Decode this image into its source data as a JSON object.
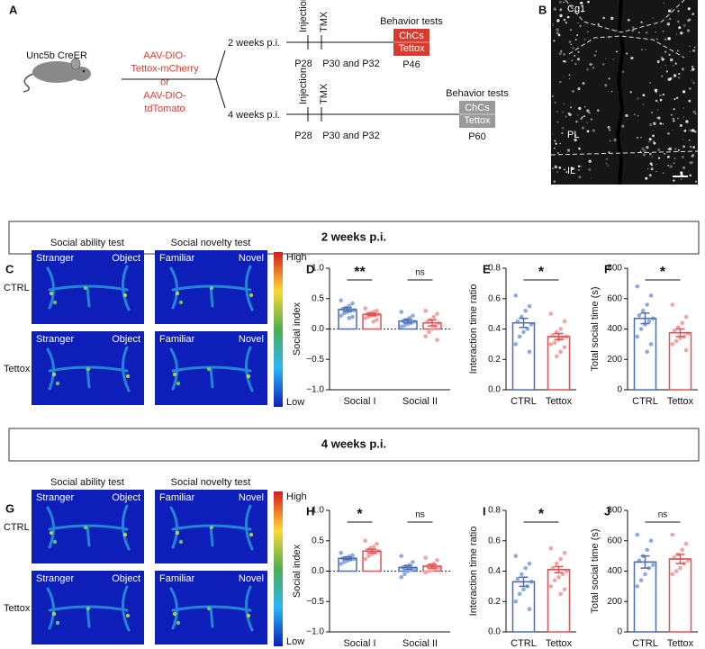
{
  "panel_a": {
    "label": "A",
    "mouse": "Unc5b CreER",
    "virus": [
      "AAV-DIO-",
      "Tettox-mCherry",
      "or",
      "AAV-DIO-",
      "tdTomato"
    ],
    "timelines": [
      {
        "duration": "2 weeks p.i.",
        "injection": "Injection",
        "tmx": "TMX",
        "p_inj": "P28",
        "p_tmx": "P30 and P32",
        "behavior": "Behavior tests",
        "box": [
          "ChCs",
          "Tettox"
        ],
        "p_test": "P46",
        "color": "#d93a2b"
      },
      {
        "duration": "4 weeks p.i.",
        "injection": "Injection",
        "tmx": "TMX",
        "p_inj": "P28",
        "p_tmx": "P30 and P32",
        "behavior": "Behavior tests",
        "box": [
          "ChCs",
          "Tettox"
        ],
        "p_test": "P60",
        "color": "#9a9a9a"
      }
    ]
  },
  "panel_b": {
    "label": "B",
    "regions": [
      "Cg1",
      "PL",
      "IL"
    ]
  },
  "banners": [
    "2 weeks p.i.",
    "4 weeks p.i."
  ],
  "heatmap_panels": [
    {
      "label": "C",
      "tests": [
        "Social ability test",
        "Social novelty test"
      ],
      "conditions": [
        "CTRL",
        "Tettox"
      ],
      "chambers": [
        [
          "Stranger",
          "Object"
        ],
        [
          "Familiar",
          "Novel"
        ]
      ],
      "scale": [
        "High",
        "Low"
      ]
    },
    {
      "label": "G",
      "tests": [
        "Social ability test",
        "Social novelty test"
      ],
      "conditions": [
        "CTRL",
        "Tettox"
      ],
      "chambers": [
        [
          "Stranger",
          "Object"
        ],
        [
          "Familiar",
          "Novel"
        ]
      ],
      "scale": [
        "High",
        "Low"
      ]
    }
  ],
  "chart_data": [
    {
      "type": "bar",
      "panel": "D",
      "ylabel": "Social index",
      "categories": [
        "Social I",
        "Social II"
      ],
      "series": [
        {
          "color": "#4a6fb5",
          "point_color": "#8fabdc",
          "values": [
            0.32,
            0.13
          ],
          "errors": [
            0.03,
            0.03
          ],
          "points": [
            [
              0.47,
              0.42,
              0.38,
              0.35,
              0.33,
              0.31,
              0.3,
              0.28,
              0.26,
              0.22,
              0.2,
              0.18
            ],
            [
              0.28,
              0.22,
              0.18,
              0.15,
              0.13,
              0.12,
              0.1,
              0.08,
              0.06,
              0.04
            ]
          ]
        },
        {
          "color": "#e05252",
          "point_color": "#f3a3a3",
          "values": [
            0.24,
            0.1
          ],
          "errors": [
            0.02,
            0.05
          ],
          "points": [
            [
              0.34,
              0.3,
              0.28,
              0.26,
              0.25,
              0.24,
              0.23,
              0.22,
              0.2,
              0.18,
              0.15,
              0.12
            ],
            [
              0.3,
              0.25,
              0.2,
              0.15,
              0.12,
              0.1,
              0.05,
              0.0,
              -0.05,
              -0.12,
              -0.18
            ]
          ]
        }
      ],
      "significance": [
        "**",
        "ns"
      ],
      "refline": 0,
      "ylim": [
        -1,
        1
      ],
      "yticks": [
        {
          "value": -1,
          "label": "−1.0"
        },
        {
          "value": -0.5,
          "label": "−0.5"
        },
        {
          "value": 0,
          "label": "0.0"
        },
        0.5,
        {
          "value": 1,
          "label": "1.0"
        }
      ]
    },
    {
      "type": "bar",
      "panel": "E",
      "ylabel": "Interaction time ratio",
      "categories": [
        "CTRL",
        "Tettox"
      ],
      "colors": [
        "#4a6fb5",
        "#e05252"
      ],
      "point_colors": [
        "#8fabdc",
        "#f3a3a3"
      ],
      "values": [
        0.44,
        0.35
      ],
      "errors": [
        0.03,
        0.02
      ],
      "points": [
        [
          0.62,
          0.55,
          0.52,
          0.48,
          0.45,
          0.43,
          0.4,
          0.38,
          0.35,
          0.3,
          0.25
        ],
        [
          0.5,
          0.45,
          0.4,
          0.38,
          0.36,
          0.35,
          0.34,
          0.33,
          0.31,
          0.3,
          0.28,
          0.25,
          0.22
        ]
      ],
      "significance": "*",
      "ylim": [
        0,
        0.8
      ],
      "yticks": [
        {
          "value": 0,
          "label": "0.0"
        },
        0.2,
        0.4,
        0.6,
        0.8
      ]
    },
    {
      "type": "bar",
      "panel": "F",
      "ylabel": "Total social time (s)",
      "categories": [
        "CTRL",
        "Tettox"
      ],
      "colors": [
        "#4a6fb5",
        "#e05252"
      ],
      "point_colors": [
        "#8fabdc",
        "#f3a3a3"
      ],
      "values": [
        470,
        375
      ],
      "errors": [
        35,
        25
      ],
      "points": [
        [
          680,
          620,
          560,
          520,
          490,
          470,
          450,
          430,
          400,
          350,
          300,
          250
        ],
        [
          560,
          480,
          440,
          410,
          390,
          370,
          350,
          340,
          320,
          300,
          260
        ]
      ],
      "significance": "*",
      "ylim": [
        0,
        800
      ],
      "yticks": [
        0,
        200,
        400,
        600,
        800
      ]
    },
    {
      "type": "bar",
      "panel": "H",
      "ylabel": "Social index",
      "categories": [
        "Social I",
        "Social II"
      ],
      "series": [
        {
          "color": "#4a6fb5",
          "point_color": "#8fabdc",
          "values": [
            0.21,
            0.06
          ],
          "errors": [
            0.02,
            0.03
          ],
          "points": [
            [
              0.3,
              0.26,
              0.24,
              0.22,
              0.21,
              0.2,
              0.19,
              0.17,
              0.15,
              0.12
            ],
            [
              0.25,
              0.15,
              0.1,
              0.08,
              0.06,
              0.04,
              0.02,
              0.0,
              -0.05,
              -0.1
            ]
          ]
        },
        {
          "color": "#e05252",
          "point_color": "#f3a3a3",
          "values": [
            0.33,
            0.08
          ],
          "errors": [
            0.03,
            0.03
          ],
          "points": [
            [
              0.5,
              0.45,
              0.4,
              0.38,
              0.35,
              0.33,
              0.3,
              0.28,
              0.25,
              0.2
            ],
            [
              0.22,
              0.18,
              0.12,
              0.1,
              0.08,
              0.06,
              0.04,
              0.02,
              0.0,
              -0.02
            ]
          ]
        }
      ],
      "significance": [
        "*",
        "ns"
      ],
      "refline": 0,
      "ylim": [
        -1,
        1
      ],
      "yticks": [
        {
          "value": -1,
          "label": "−1.0"
        },
        {
          "value": -0.5,
          "label": "−0.5"
        },
        {
          "value": 0,
          "label": "0.0"
        },
        0.5,
        {
          "value": 1,
          "label": "1.0"
        }
      ]
    },
    {
      "type": "bar",
      "panel": "I",
      "ylabel": "Interaction time ratio",
      "categories": [
        "CTRL",
        "Tettox"
      ],
      "colors": [
        "#4a6fb5",
        "#e05252"
      ],
      "point_colors": [
        "#8fabdc",
        "#f3a3a3"
      ],
      "values": [
        0.33,
        0.41
      ],
      "errors": [
        0.03,
        0.02
      ],
      "points": [
        [
          0.5,
          0.45,
          0.42,
          0.38,
          0.35,
          0.33,
          0.3,
          0.28,
          0.25,
          0.2,
          0.15
        ],
        [
          0.55,
          0.52,
          0.48,
          0.45,
          0.42,
          0.4,
          0.38,
          0.36,
          0.34,
          0.3,
          0.28,
          0.25
        ]
      ],
      "significance": "*",
      "ylim": [
        0,
        0.8
      ],
      "yticks": [
        {
          "value": 0,
          "label": "0.0"
        },
        0.2,
        0.4,
        0.6,
        0.8
      ]
    },
    {
      "type": "bar",
      "panel": "J",
      "ylabel": "Total social time (s)",
      "categories": [
        "CTRL",
        "Tettox"
      ],
      "colors": [
        "#4a6fb5",
        "#e05252"
      ],
      "point_colors": [
        "#8fabdc",
        "#f3a3a3"
      ],
      "values": [
        460,
        480
      ],
      "errors": [
        40,
        30
      ],
      "points": [
        [
          640,
          600,
          540,
          500,
          470,
          440,
          420,
          380,
          340,
          300
        ],
        [
          640,
          580,
          540,
          510,
          490,
          470,
          450,
          420,
          400,
          380
        ]
      ],
      "significance": "ns",
      "ylim": [
        0,
        800
      ],
      "yticks": [
        0,
        200,
        400,
        600,
        800
      ]
    }
  ]
}
